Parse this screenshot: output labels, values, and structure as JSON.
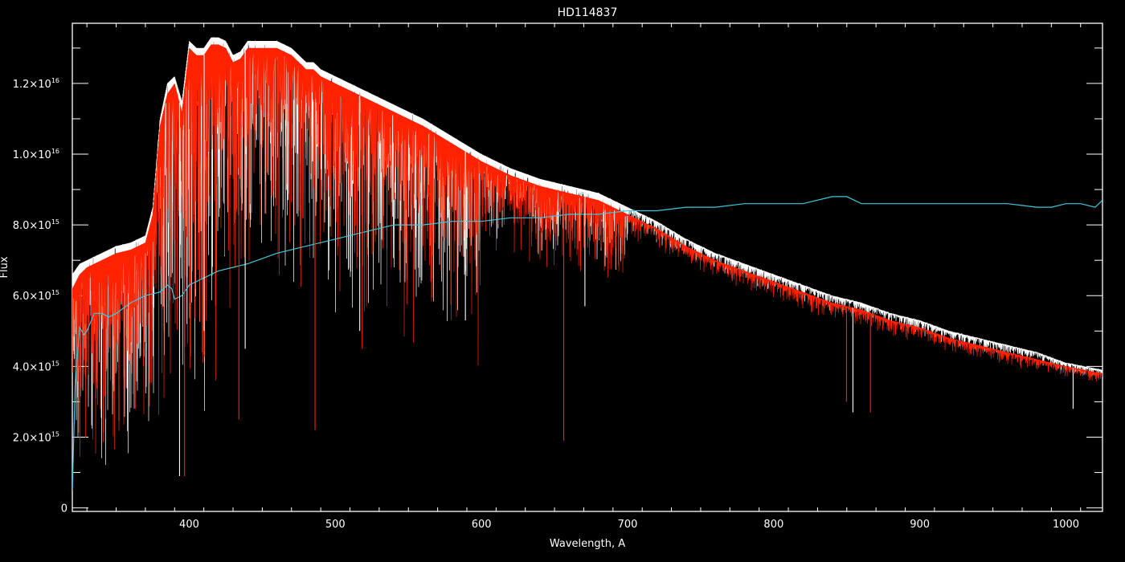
{
  "chart_data": {
    "type": "line",
    "title": "HD114837",
    "xlabel": "Wavelength, A",
    "ylabel": "Flux",
    "xlim": [
      320,
      1025
    ],
    "ylim": [
      -100000000000000.0,
      1.37e+16
    ],
    "x_ticks": [
      {
        "value": 400,
        "label": "400"
      },
      {
        "value": 500,
        "label": "500"
      },
      {
        "value": 600,
        "label": "600"
      },
      {
        "value": 700,
        "label": "700"
      },
      {
        "value": 800,
        "label": "800"
      },
      {
        "value": 900,
        "label": "900"
      },
      {
        "value": 1000,
        "label": "1000"
      }
    ],
    "y_ticks": [
      {
        "value": 0,
        "mant": "0",
        "exp": ""
      },
      {
        "value": 2000000000000000.0,
        "mant": "2.0×10",
        "exp": "15"
      },
      {
        "value": 4000000000000000.0,
        "mant": "4.0×10",
        "exp": "15"
      },
      {
        "value": 6000000000000000.0,
        "mant": "6.0×10",
        "exp": "15"
      },
      {
        "value": 8000000000000000.0,
        "mant": "8.0×10",
        "exp": "15"
      },
      {
        "value": 1e+16,
        "mant": "1.0×10",
        "exp": "16"
      },
      {
        "value": 1.2e+16,
        "mant": "1.2×10",
        "exp": "16"
      }
    ],
    "grid": false,
    "legend": "none",
    "series": [
      {
        "color": "#ffffff",
        "x": [
          320,
          325,
          330,
          340,
          350,
          360,
          370,
          375,
          380,
          385,
          390,
          395,
          400,
          405,
          410,
          415,
          420,
          425,
          430,
          435,
          440,
          450,
          460,
          470,
          480,
          485,
          490,
          500,
          520,
          540,
          560,
          580,
          600,
          620,
          640,
          650,
          660,
          680,
          700,
          720,
          740,
          760,
          780,
          800,
          820,
          840,
          860,
          880,
          900,
          920,
          940,
          960,
          980,
          1000,
          1025
        ],
        "y": [
          6600000000000000.0,
          6900000000000000.0,
          7000000000000000.0,
          7200000000000000.0,
          7400000000000000.0,
          7500000000000000.0,
          7700000000000000.0,
          8500000000000000.0,
          1.1e+16,
          1.2e+16,
          1.22e+16,
          1.15e+16,
          1.32e+16,
          1.3e+16,
          1.3e+16,
          1.33e+16,
          1.33e+16,
          1.32e+16,
          1.28e+16,
          1.29e+16,
          1.32e+16,
          1.32e+16,
          1.32e+16,
          1.3e+16,
          1.26e+16,
          1.26e+16,
          1.24e+16,
          1.22e+16,
          1.18e+16,
          1.14e+16,
          1.1e+16,
          1.05e+16,
          1e+16,
          9600000000000000.0,
          9300000000000000.0,
          9200000000000000.0,
          9100000000000000.0,
          8900000000000000.0,
          8500000000000000.0,
          8100000000000000.0,
          7600000000000000.0,
          7200000000000000.0,
          6900000000000000.0,
          6600000000000000.0,
          6300000000000000.0,
          6000000000000000.0,
          5800000000000000.0,
          5500000000000000.0,
          5300000000000000.0,
          5000000000000000.0,
          4800000000000000.0,
          4600000000000000.0,
          4400000000000000.0,
          4100000000000000.0,
          3900000000000000.0
        ]
      },
      {
        "color": "#ff2200",
        "x": [
          320,
          325,
          330,
          340,
          350,
          360,
          370,
          375,
          380,
          385,
          390,
          395,
          400,
          405,
          410,
          415,
          420,
          425,
          430,
          435,
          440,
          450,
          460,
          470,
          480,
          485,
          490,
          500,
          520,
          540,
          560,
          580,
          600,
          620,
          640,
          650,
          660,
          680,
          700,
          720,
          740,
          760,
          780,
          800,
          820,
          840,
          860,
          880,
          900,
          920,
          940,
          960,
          980,
          1000,
          1025
        ],
        "y": [
          6200000000000000.0,
          6600000000000000.0,
          6800000000000000.0,
          7000000000000000.0,
          7200000000000000.0,
          7300000000000000.0,
          7500000000000000.0,
          8300000000000000.0,
          1.08e+16,
          1.17e+16,
          1.2e+16,
          1.12e+16,
          1.3e+16,
          1.28e+16,
          1.28e+16,
          1.31e+16,
          1.31e+16,
          1.3e+16,
          1.26e+16,
          1.27e+16,
          1.3e+16,
          1.3e+16,
          1.3e+16,
          1.28e+16,
          1.24e+16,
          1.24e+16,
          1.22e+16,
          1.2e+16,
          1.16e+16,
          1.12e+16,
          1.08e+16,
          1.03e+16,
          9800000000000000.0,
          9400000000000000.0,
          9100000000000000.0,
          9000000000000000.0,
          8900000000000000.0,
          8700000000000000.0,
          8300000000000000.0,
          7900000000000000.0,
          7400000000000000.0,
          7000000000000000.0,
          6700000000000000.0,
          6400000000000000.0,
          6100000000000000.0,
          5800000000000000.0,
          5600000000000000.0,
          5300000000000000.0,
          5100000000000000.0,
          4800000000000000.0,
          4600000000000000.0,
          4400000000000000.0,
          4200000000000000.0,
          4000000000000000.0,
          3800000000000000.0
        ]
      },
      {
        "color": "#40c8d8",
        "x": [
          320,
          322,
          325,
          328,
          330,
          335,
          340,
          345,
          350,
          360,
          370,
          380,
          385,
          388,
          390,
          395,
          400,
          410,
          420,
          430,
          440,
          460,
          480,
          500,
          520,
          540,
          560,
          580,
          600,
          620,
          640,
          660,
          680,
          700,
          720,
          740,
          760,
          780,
          800,
          820,
          840,
          850,
          860,
          880,
          900,
          920,
          940,
          960,
          980,
          990,
          1000,
          1010,
          1020,
          1025
        ],
        "y": [
          500000000000000.0,
          3500000000000000.0,
          5100000000000000.0,
          4900000000000000.0,
          5000000000000000.0,
          5500000000000000.0,
          5500000000000000.0,
          5400000000000000.0,
          5500000000000000.0,
          5800000000000000.0,
          6000000000000000.0,
          6100000000000000.0,
          6300000000000000.0,
          6200000000000000.0,
          5900000000000000.0,
          6000000000000000.0,
          6300000000000000.0,
          6500000000000000.0,
          6700000000000000.0,
          6800000000000000.0,
          6900000000000000.0,
          7200000000000000.0,
          7400000000000000.0,
          7600000000000000.0,
          7800000000000000.0,
          8000000000000000.0,
          8000000000000000.0,
          8100000000000000.0,
          8100000000000000.0,
          8200000000000000.0,
          8200000000000000.0,
          8300000000000000.0,
          8300000000000000.0,
          8400000000000000.0,
          8400000000000000.0,
          8500000000000000.0,
          8500000000000000.0,
          8600000000000000.0,
          8600000000000000.0,
          8600000000000000.0,
          8800000000000000.0,
          8800000000000000.0,
          8600000000000000.0,
          8600000000000000.0,
          8600000000000000.0,
          8600000000000000.0,
          8600000000000000.0,
          8600000000000000.0,
          8500000000000000.0,
          8500000000000000.0,
          8600000000000000.0,
          8600000000000000.0,
          8500000000000000.0,
          8700000000000000.0
        ]
      }
    ],
    "absorption_lines": [
      {
        "x": 393.4,
        "y": 900000000000000.0
      },
      {
        "x": 396.8,
        "y": 900000000000000.0
      },
      {
        "x": 410.2,
        "y": 5000000000000000.0
      },
      {
        "x": 434.0,
        "y": 2500000000000000.0
      },
      {
        "x": 438.3,
        "y": 4500000000000000.0
      },
      {
        "x": 486.1,
        "y": 2200000000000000.0
      },
      {
        "x": 516.7,
        "y": 5000000000000000.0
      },
      {
        "x": 518.4,
        "y": 4500000000000000.0
      },
      {
        "x": 589.0,
        "y": 5300000000000000.0
      },
      {
        "x": 656.3,
        "y": 1900000000000000.0
      },
      {
        "x": 670.8,
        "y": 5700000000000000.0
      },
      {
        "x": 849.8,
        "y": 3000000000000000.0
      },
      {
        "x": 854.2,
        "y": 2700000000000000.0
      },
      {
        "x": 866.2,
        "y": 2700000000000000.0
      },
      {
        "x": 1004.9,
        "y": 2800000000000000.0
      }
    ]
  }
}
